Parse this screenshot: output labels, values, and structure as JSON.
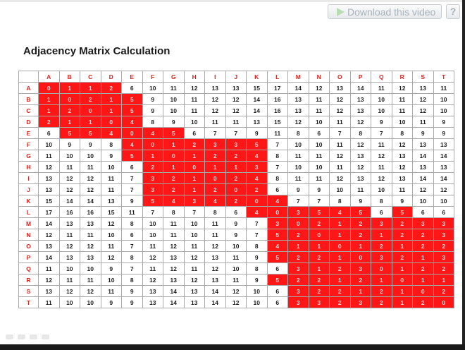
{
  "toolbar": {
    "download_label": "Download this video",
    "help_label": "?"
  },
  "page": {
    "title": "Adjacency Matrix Calculation"
  },
  "matrix": {
    "columns": [
      "A",
      "B",
      "C",
      "D",
      "E",
      "F",
      "G",
      "H",
      "I",
      "J",
      "K",
      "L",
      "M",
      "N",
      "O",
      "P",
      "Q",
      "R",
      "S",
      "T"
    ],
    "rows": [
      {
        "label": "A",
        "values": [
          "0",
          "1",
          "1",
          "2",
          "6",
          "10",
          "11",
          "12",
          "13",
          "13",
          "15",
          "17",
          "14",
          "12",
          "13",
          "14",
          "11",
          "12",
          "13",
          "11"
        ],
        "red_cols": [
          0,
          1,
          2,
          3
        ]
      },
      {
        "label": "B",
        "values": [
          "1",
          "0",
          "2",
          "1",
          "5",
          "9",
          "10",
          "11",
          "12",
          "12",
          "14",
          "16",
          "13",
          "11",
          "12",
          "13",
          "10",
          "11",
          "12",
          "10"
        ],
        "red_cols": [
          0,
          1,
          2,
          3,
          4
        ]
      },
      {
        "label": "C",
        "values": [
          "1",
          "2",
          "0",
          "1",
          "5",
          "9",
          "10",
          "11",
          "12",
          "12",
          "14",
          "16",
          "13",
          "11",
          "12",
          "13",
          "10",
          "11",
          "12",
          "10"
        ],
        "red_cols": [
          0,
          1,
          2,
          3,
          4
        ]
      },
      {
        "label": "D",
        "values": [
          "2",
          "1",
          "1",
          "0",
          "4",
          "8",
          "9",
          "10",
          "11",
          "11",
          "13",
          "15",
          "12",
          "10",
          "11",
          "12",
          "9",
          "10",
          "11",
          "9"
        ],
        "red_cols": [
          0,
          1,
          2,
          3,
          4
        ]
      },
      {
        "label": "E",
        "values": [
          "6",
          "5",
          "5",
          "4",
          "0",
          "4",
          "5",
          "6",
          "7",
          "7",
          "9",
          "11",
          "8",
          "6",
          "7",
          "8",
          "7",
          "8",
          "9",
          "9"
        ],
        "red_cols": [
          1,
          2,
          3,
          4,
          5,
          6
        ]
      },
      {
        "label": "F",
        "values": [
          "10",
          "9",
          "9",
          "8",
          "4",
          "0",
          "1",
          "2",
          "3",
          "3",
          "5",
          "7",
          "10",
          "10",
          "11",
          "12",
          "11",
          "12",
          "13",
          "13"
        ],
        "red_cols": [
          4,
          5,
          6,
          7,
          8,
          9,
          10
        ]
      },
      {
        "label": "G",
        "values": [
          "11",
          "10",
          "10",
          "9",
          "5",
          "1",
          "0",
          "1",
          "2",
          "2",
          "4",
          "8",
          "11",
          "11",
          "12",
          "13",
          "12",
          "13",
          "14",
          "14"
        ],
        "red_cols": [
          4,
          5,
          6,
          7,
          8,
          9,
          10
        ]
      },
      {
        "label": "H",
        "values": [
          "12",
          "11",
          "11",
          "10",
          "6",
          "2",
          "1",
          "0",
          "1",
          "1",
          "3",
          "7",
          "10",
          "10",
          "11",
          "12",
          "11",
          "12",
          "13",
          "13"
        ],
        "red_cols": [
          5,
          6,
          7,
          8,
          9,
          10
        ]
      },
      {
        "label": "I",
        "values": [
          "13",
          "12",
          "12",
          "11",
          "7",
          "3",
          "2",
          "1",
          "0",
          "2",
          "4",
          "8",
          "11",
          "11",
          "12",
          "13",
          "12",
          "13",
          "14",
          "14"
        ],
        "red_cols": [
          5,
          6,
          7,
          8,
          9,
          10
        ]
      },
      {
        "label": "J",
        "values": [
          "13",
          "12",
          "12",
          "11",
          "7",
          "3",
          "2",
          "1",
          "2",
          "0",
          "2",
          "6",
          "9",
          "9",
          "10",
          "11",
          "10",
          "11",
          "12",
          "12"
        ],
        "red_cols": [
          5,
          6,
          7,
          8,
          9,
          10
        ]
      },
      {
        "label": "K",
        "values": [
          "15",
          "14",
          "14",
          "13",
          "9",
          "5",
          "4",
          "3",
          "4",
          "2",
          "0",
          "4",
          "7",
          "7",
          "8",
          "9",
          "8",
          "9",
          "10",
          "10"
        ],
        "red_cols": [
          5,
          6,
          7,
          8,
          9,
          10,
          11
        ]
      },
      {
        "label": "L",
        "values": [
          "17",
          "16",
          "16",
          "15",
          "11",
          "7",
          "8",
          "7",
          "8",
          "6",
          "4",
          "0",
          "3",
          "5",
          "4",
          "5",
          "6",
          "5",
          "6",
          "6"
        ],
        "red_cols": [
          10,
          11,
          12,
          13,
          14,
          15,
          17
        ]
      },
      {
        "label": "M",
        "values": [
          "14",
          "13",
          "13",
          "12",
          "8",
          "10",
          "11",
          "10",
          "11",
          "9",
          "7",
          "3",
          "0",
          "2",
          "1",
          "2",
          "3",
          "2",
          "3",
          "3"
        ],
        "red_cols": [
          11,
          12,
          13,
          14,
          15,
          16,
          17,
          18,
          19
        ]
      },
      {
        "label": "N",
        "values": [
          "12",
          "11",
          "11",
          "10",
          "6",
          "10",
          "11",
          "10",
          "11",
          "9",
          "7",
          "5",
          "2",
          "0",
          "1",
          "2",
          "1",
          "2",
          "2",
          "3"
        ],
        "red_cols": [
          11,
          12,
          13,
          14,
          15,
          16,
          17,
          18,
          19
        ]
      },
      {
        "label": "O",
        "values": [
          "13",
          "12",
          "12",
          "11",
          "7",
          "11",
          "12",
          "11",
          "12",
          "10",
          "8",
          "4",
          "1",
          "1",
          "0",
          "1",
          "2",
          "1",
          "2",
          "2"
        ],
        "red_cols": [
          11,
          12,
          13,
          14,
          15,
          16,
          17,
          18,
          19
        ]
      },
      {
        "label": "P",
        "values": [
          "14",
          "13",
          "13",
          "12",
          "8",
          "12",
          "13",
          "12",
          "13",
          "11",
          "9",
          "5",
          "2",
          "2",
          "1",
          "0",
          "3",
          "2",
          "1",
          "3"
        ],
        "red_cols": [
          11,
          12,
          13,
          14,
          15,
          16,
          17,
          18,
          19
        ]
      },
      {
        "label": "Q",
        "values": [
          "11",
          "10",
          "10",
          "9",
          "7",
          "11",
          "12",
          "11",
          "12",
          "10",
          "8",
          "6",
          "3",
          "1",
          "2",
          "3",
          "0",
          "1",
          "2",
          "2"
        ],
        "red_cols": [
          12,
          13,
          14,
          15,
          16,
          17,
          18,
          19
        ]
      },
      {
        "label": "R",
        "values": [
          "12",
          "11",
          "11",
          "10",
          "8",
          "12",
          "13",
          "12",
          "13",
          "11",
          "9",
          "5",
          "2",
          "2",
          "1",
          "2",
          "1",
          "0",
          "1",
          "1"
        ],
        "red_cols": [
          11,
          12,
          13,
          14,
          15,
          16,
          17,
          18,
          19
        ]
      },
      {
        "label": "S",
        "values": [
          "13",
          "12",
          "12",
          "11",
          "9",
          "13",
          "14",
          "13",
          "14",
          "12",
          "10",
          "6",
          "3",
          "2",
          "2",
          "1",
          "2",
          "1",
          "0",
          "2"
        ],
        "red_cols": [
          12,
          13,
          14,
          15,
          16,
          17,
          18,
          19
        ]
      },
      {
        "label": "T",
        "values": [
          "11",
          "10",
          "10",
          "9",
          "9",
          "13",
          "14",
          "13",
          "14",
          "12",
          "10",
          "6",
          "3",
          "3",
          "2",
          "3",
          "2",
          "1",
          "2",
          "0"
        ],
        "red_cols": [
          12,
          13,
          14,
          15,
          16,
          17,
          18,
          19
        ]
      }
    ]
  },
  "colors": {
    "highlight": "#ff1616",
    "header_text": "#e0201d"
  }
}
